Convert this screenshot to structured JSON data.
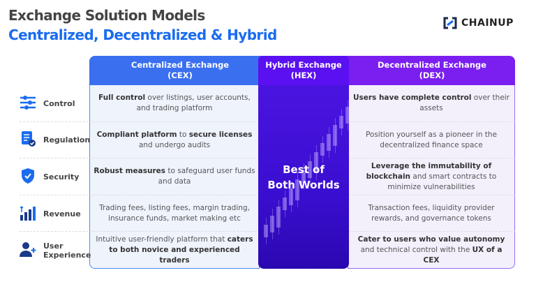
{
  "title": "Exchange Solution Models",
  "subtitle": "Centralized, Decentralized & Hybrid",
  "brand": {
    "name": "CHAINUP",
    "icon": "chainup-logo"
  },
  "colors": {
    "cex": "#3a6ff0",
    "hex": "#5a10f0",
    "dex": "#7a1ff0",
    "subtitle": "#1a6cf0"
  },
  "columns": {
    "cex": {
      "line1": "Centralized Exchange",
      "line2": "(CEX)"
    },
    "hex": {
      "line1": "Hybrid Exchange",
      "line2": "(HEX)",
      "body1": "Best of",
      "body2": "Both Worlds"
    },
    "dex": {
      "line1": "Decentralized Exchange",
      "line2": "(DEX)"
    }
  },
  "rows": [
    {
      "label": "Control",
      "icon": "sliders-icon",
      "cex": [
        {
          "t": "Full control",
          "b": true
        },
        {
          "t": " over listings, user accounts, and trading platform",
          "b": false
        }
      ],
      "dex": [
        {
          "t": "Users have complete control",
          "b": true
        },
        {
          "t": " over their assets",
          "b": false
        }
      ]
    },
    {
      "label": "Regulation",
      "icon": "document-check-icon",
      "cex": [
        {
          "t": "Compliant platform",
          "b": true
        },
        {
          "t": " to ",
          "b": false
        },
        {
          "t": "secure licenses",
          "b": true
        },
        {
          "t": " and undergo audits",
          "b": false
        }
      ],
      "dex": [
        {
          "t": "Position yourself as a pioneer in the decentralized finance space",
          "b": false
        }
      ]
    },
    {
      "label": "Security",
      "icon": "shield-check-icon",
      "cex": [
        {
          "t": "Robust measures",
          "b": true
        },
        {
          "t": " to safeguard user funds and data",
          "b": false
        }
      ],
      "dex": [
        {
          "t": "Leverage the immutability of blockchain",
          "b": true
        },
        {
          "t": " and smart contracts to minimize vulnerabilities",
          "b": false
        }
      ]
    },
    {
      "label": "Revenue",
      "icon": "bar-chart-up-icon",
      "cex": [
        {
          "t": "Trading fees, listing fees, margin trading, insurance funds, market making etc",
          "b": false
        }
      ],
      "dex": [
        {
          "t": "Transaction fees, liquidity provider rewards, and governance tokens",
          "b": false
        }
      ]
    },
    {
      "label": "User Experience",
      "icon": "user-add-icon",
      "cex": [
        {
          "t": "Intuitive user-friendly platform that ",
          "b": false
        },
        {
          "t": "caters to both novice and experienced traders",
          "b": true
        }
      ],
      "dex": [
        {
          "t": "Cater to users who value autonomy",
          "b": true
        },
        {
          "t": " and technical control with the ",
          "b": false
        },
        {
          "t": "UX of a CEX",
          "b": true
        }
      ]
    }
  ]
}
